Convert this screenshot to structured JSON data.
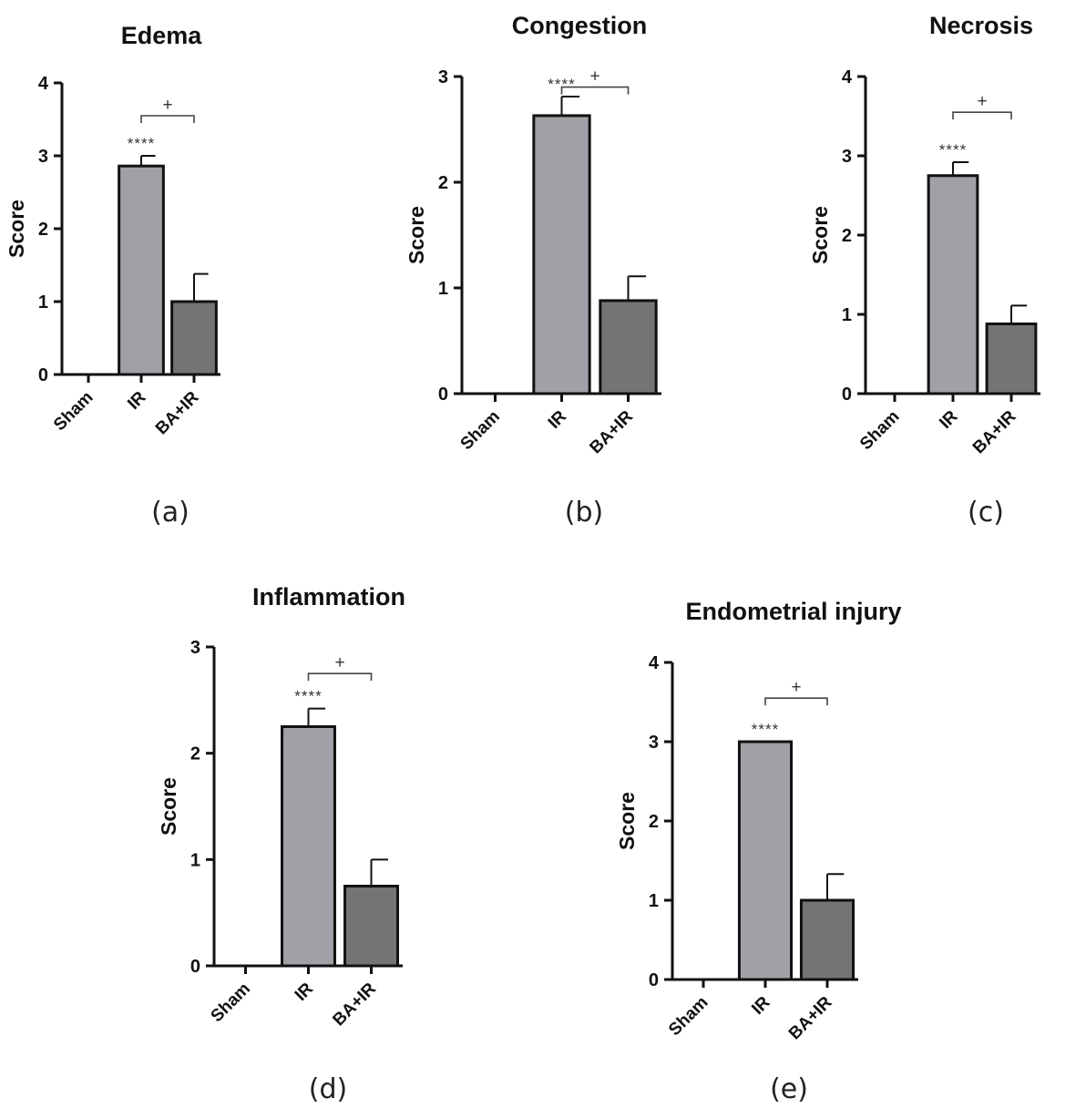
{
  "chart_data": [
    {
      "type": "bar",
      "title": "Edema",
      "panel_label": "(a)",
      "ylabel": "Score",
      "ylim": [
        0,
        4
      ],
      "yticks": [
        0,
        1,
        2,
        3,
        4
      ],
      "categories": [
        "Sham",
        "IR",
        "BA+IR"
      ],
      "values": [
        0,
        2.86,
        1.0
      ],
      "errors": [
        0,
        0.14,
        0.38
      ],
      "bar_colors": [
        "#a0a0a6",
        "#a0a0a6",
        "#747474"
      ],
      "significance": {
        "marker": "****",
        "bar_index": 1
      },
      "comparison": {
        "marker": "+",
        "from": 1,
        "to": 2,
        "level": 3.55
      }
    },
    {
      "type": "bar",
      "title": "Congestion",
      "panel_label": "(b)",
      "ylabel": "Score",
      "ylim": [
        0,
        3
      ],
      "yticks": [
        0,
        1,
        2,
        3
      ],
      "categories": [
        "Sham",
        "IR",
        "BA+IR"
      ],
      "values": [
        0,
        2.63,
        0.88
      ],
      "errors": [
        0,
        0.18,
        0.23
      ],
      "bar_colors": [
        "#a0a0a6",
        "#a0a0a6",
        "#747474"
      ],
      "significance": {
        "marker": "****",
        "bar_index": 1
      },
      "comparison": {
        "marker": "+",
        "from": 1,
        "to": 2,
        "level": 2.9
      }
    },
    {
      "type": "bar",
      "title": "Necrosis",
      "panel_label": "(c)",
      "ylabel": "Score",
      "ylim": [
        0,
        4
      ],
      "yticks": [
        0,
        1,
        2,
        3,
        4
      ],
      "categories": [
        "Sham",
        "IR",
        "BA+IR"
      ],
      "values": [
        0,
        2.75,
        0.88
      ],
      "errors": [
        0,
        0.17,
        0.23
      ],
      "bar_colors": [
        "#a0a0a6",
        "#a0a0a6",
        "#747474"
      ],
      "significance": {
        "marker": "****",
        "bar_index": 1
      },
      "comparison": {
        "marker": "+",
        "from": 1,
        "to": 2,
        "level": 3.55
      }
    },
    {
      "type": "bar",
      "title": "Inflammation",
      "panel_label": "(d)",
      "ylabel": "Score",
      "ylim": [
        0,
        3
      ],
      "yticks": [
        0,
        1,
        2,
        3
      ],
      "categories": [
        "Sham",
        "IR",
        "BA+IR"
      ],
      "values": [
        0,
        2.25,
        0.75
      ],
      "errors": [
        0,
        0.17,
        0.25
      ],
      "bar_colors": [
        "#a0a0a6",
        "#a0a0a6",
        "#747474"
      ],
      "significance": {
        "marker": "****",
        "bar_index": 1
      },
      "comparison": {
        "marker": "+",
        "from": 1,
        "to": 2,
        "level": 2.75
      }
    },
    {
      "type": "bar",
      "title": "Endometrial injury",
      "panel_label": "(e)",
      "ylabel": "Score",
      "ylim": [
        0,
        4
      ],
      "yticks": [
        0,
        1,
        2,
        3,
        4
      ],
      "categories": [
        "Sham",
        "IR",
        "BA+IR"
      ],
      "values": [
        0,
        3.0,
        1.0
      ],
      "errors": [
        0,
        0,
        0.33
      ],
      "bar_colors": [
        "#a0a0a6",
        "#a0a0a6",
        "#747474"
      ],
      "significance": {
        "marker": "****",
        "bar_index": 1
      },
      "comparison": {
        "marker": "+",
        "from": 1,
        "to": 2,
        "level": 3.55
      }
    }
  ],
  "colors": {
    "axis": "#111111",
    "bar_edge": "#111111",
    "bracket": "#444444"
  }
}
